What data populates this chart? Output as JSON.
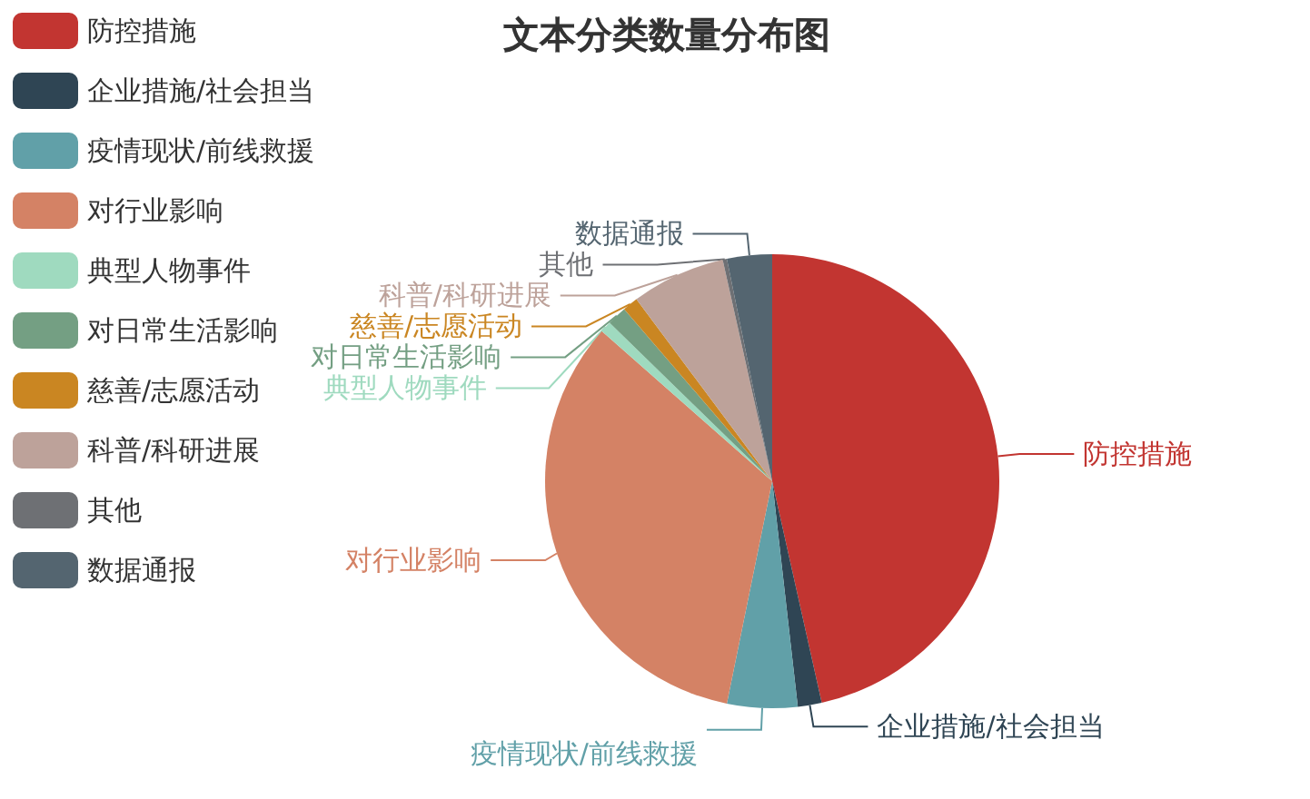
{
  "chart_data": {
    "type": "pie",
    "title": "文本分类数量分布图",
    "categories": [
      "防控措施",
      "企业措施/社会担当",
      "疫情现状/前线救援",
      "对行业影响",
      "典型人物事件",
      "对日常生活影响",
      "慈善/志愿活动",
      "科普/科研进展",
      "其他",
      "数据通报"
    ],
    "values": [
      46.5,
      1.7,
      5.0,
      33.3,
      0.8,
      1.4,
      1.1,
      6.7,
      0.3,
      3.2
    ],
    "colors": [
      "#c23531",
      "#2f4554",
      "#61a0a8",
      "#d48265",
      "#9fdabf",
      "#749f83",
      "#ca8622",
      "#bda29a",
      "#6e7074",
      "#546570"
    ],
    "legend": "top left"
  }
}
